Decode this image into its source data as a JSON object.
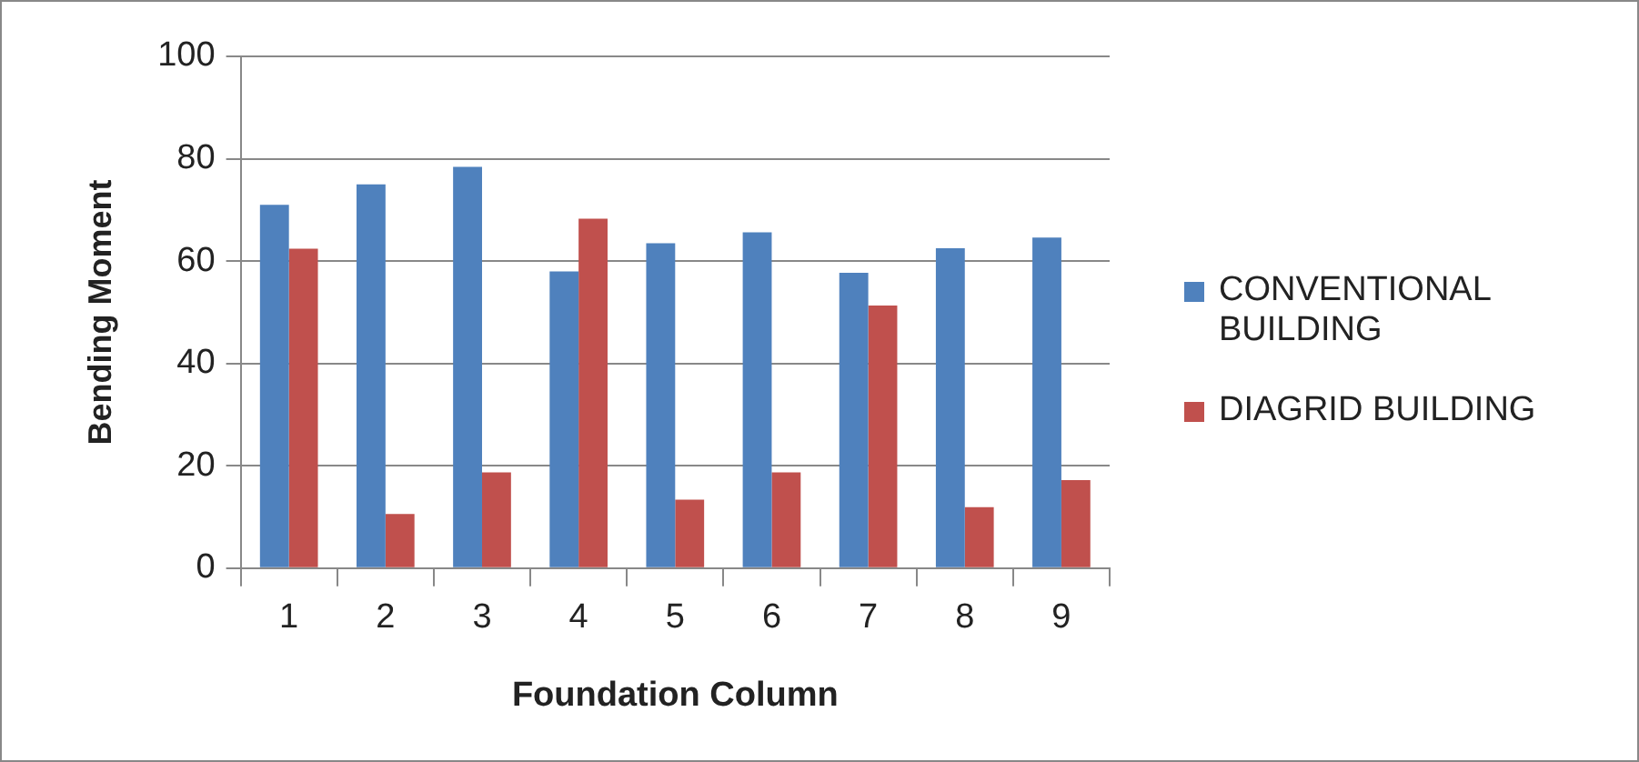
{
  "chart_data": {
    "type": "bar",
    "xlabel": "Foundation Column",
    "ylabel": "Bending Moment",
    "categories": [
      "1",
      "2",
      "3",
      "4",
      "5",
      "6",
      "7",
      "8",
      "9"
    ],
    "series": [
      {
        "name": "CONVENTIONAL BUILDING",
        "color": "#4f81bd",
        "values": [
          71,
          75,
          78.4,
          58,
          63.5,
          65.6,
          57.7,
          62.5,
          64.6
        ]
      },
      {
        "name": "DIAGRID BUILDING",
        "color": "#c0504d",
        "values": [
          62.4,
          10.6,
          18.7,
          68.3,
          13.4,
          18.7,
          51.3,
          11.9,
          17.2
        ]
      }
    ],
    "ylim": [
      0,
      100
    ],
    "yticks": [
      0,
      20,
      40,
      60,
      80,
      100
    ],
    "grid": "y",
    "legend": "right"
  }
}
